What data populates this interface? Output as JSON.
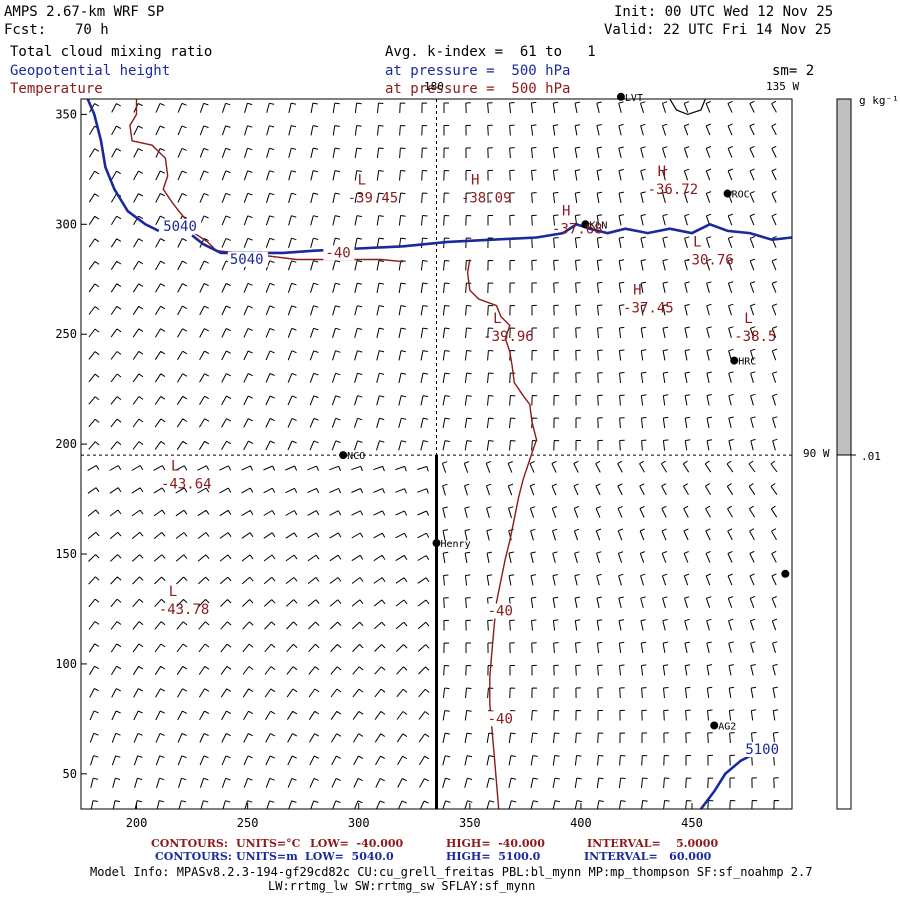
{
  "header": {
    "model": "AMPS 2.67-km WRF SP",
    "fcst_label": "Fcst:",
    "fcst_value": "70 h",
    "init": "Init: 00 UTC Wed 12 Nov 25",
    "valid": "Valid: 22 UTC Fri 14 Nov 25",
    "field1": "Total cloud mixing ratio",
    "field2": "Geopotential height",
    "field3": "Temperature",
    "avg": "Avg. k-index =  61 to   1",
    "pressure1": "at pressure =  500 hPa",
    "pressure2": "at pressure =  500 hPa",
    "sm": "sm= 2"
  },
  "colorbar": {
    "unit": "g kg⁻¹",
    "tick": ".01",
    "color_high": "#c0c0c0",
    "color_low": "#ffffff"
  },
  "map": {
    "longitude_labels": {
      "top_center": "180",
      "top_right": "135 W",
      "right_mid": "90 W"
    },
    "stations": [
      {
        "name": "LVT",
        "x": 418,
        "y": 358
      },
      {
        "name": "ROC",
        "x": 466,
        "y": 314
      },
      {
        "name": "KLN",
        "x": 402,
        "y": 300
      },
      {
        "name": "HRC",
        "x": 469,
        "y": 238
      },
      {
        "name": "NCO",
        "x": 293,
        "y": 195
      },
      {
        "name": "Henry",
        "x": 335,
        "y": 155
      },
      {
        "name": "",
        "x": 492,
        "y": 141
      },
      {
        "name": "AG2",
        "x": 460,
        "y": 72
      }
    ],
    "temperature_extrema": [
      {
        "kind": "L",
        "value": "-39.45",
        "x": 295,
        "y": 318
      },
      {
        "kind": "H",
        "value": "-38.09",
        "x": 346,
        "y": 318
      },
      {
        "kind": "H",
        "value": "-36.72",
        "x": 430,
        "y": 322
      },
      {
        "kind": "H",
        "value": "-37.68",
        "x": 387,
        "y": 304
      },
      {
        "kind": "L",
        "value": "-30.76",
        "x": 446,
        "y": 290
      },
      {
        "kind": "H",
        "value": "-37.45",
        "x": 419,
        "y": 268
      },
      {
        "kind": "L",
        "value": "-39.96",
        "x": 356,
        "y": 255
      },
      {
        "kind": "L",
        "value": "-38.5",
        "x": 469,
        "y": 255
      },
      {
        "kind": "L",
        "value": "-43.64",
        "x": 211,
        "y": 188
      },
      {
        "kind": "L",
        "value": "-43.78",
        "x": 210,
        "y": 131
      }
    ],
    "contour_labels": [
      {
        "text": "-40",
        "color": "red",
        "x": 285,
        "y": 285
      },
      {
        "text": "-40",
        "color": "red",
        "x": 358,
        "y": 122
      },
      {
        "text": "-40",
        "color": "red",
        "x": 358,
        "y": 73
      },
      {
        "text": "5040",
        "color": "blue",
        "x": 212,
        "y": 297
      },
      {
        "text": "5040",
        "color": "blue",
        "x": 242,
        "y": 282
      },
      {
        "text": "5100",
        "color": "blue",
        "x": 474,
        "y": 59
      }
    ]
  },
  "chart_data": {
    "type": "map",
    "xlim": [
      175,
      495
    ],
    "ylim": [
      34,
      357
    ],
    "xticks": [
      "200",
      "250",
      "300",
      "350",
      "400",
      "450"
    ],
    "yticks": [
      "50",
      "100",
      "150",
      "200",
      "250",
      "300",
      "350"
    ],
    "cross_section_x": 335,
    "cross_section_y_start": 34,
    "cross_section_y_end": 195,
    "dashed_vertical_x": 335,
    "dashed_horizontal_y": 195,
    "temperature_contours": [
      {
        "value": -40,
        "points": [
          [
            350,
            284
          ],
          [
            349,
            278
          ],
          [
            350,
            270
          ],
          [
            354,
            266
          ],
          [
            362,
            263
          ],
          [
            364,
            258
          ],
          [
            368,
            254
          ],
          [
            366,
            248
          ],
          [
            368,
            242
          ],
          [
            369,
            236
          ],
          [
            370,
            228
          ],
          [
            374,
            222
          ],
          [
            377,
            218
          ],
          [
            378,
            210
          ],
          [
            380,
            202
          ],
          [
            378,
            196
          ],
          [
            376,
            190
          ],
          [
            374,
            184
          ],
          [
            372,
            176
          ],
          [
            370,
            166
          ],
          [
            368,
            156
          ],
          [
            366,
            148
          ],
          [
            364,
            138
          ],
          [
            362,
            128
          ],
          [
            361,
            118
          ],
          [
            360,
            106
          ],
          [
            359,
            94
          ],
          [
            359,
            82
          ],
          [
            360,
            70
          ],
          [
            361,
            58
          ],
          [
            362,
            46
          ],
          [
            363,
            34
          ]
        ]
      },
      {
        "value": -40,
        "points": [
          [
            200,
            357
          ],
          [
            200,
            350
          ],
          [
            197,
            345
          ],
          [
            198,
            338
          ],
          [
            207,
            336
          ],
          [
            213,
            330
          ],
          [
            214,
            322
          ],
          [
            212,
            316
          ],
          [
            216,
            310
          ],
          [
            219,
            306
          ],
          [
            224,
            300
          ],
          [
            226,
            296
          ],
          [
            232,
            292
          ],
          [
            236,
            288
          ],
          [
            246,
            287
          ],
          [
            256,
            286
          ],
          [
            272,
            284
          ],
          [
            290,
            284
          ],
          [
            300,
            284
          ],
          [
            310,
            284
          ],
          [
            320,
            283
          ]
        ]
      }
    ],
    "height_contours": [
      {
        "value": 5040,
        "points": [
          [
            178,
            357
          ],
          [
            181,
            350
          ],
          [
            184,
            338
          ],
          [
            186,
            326
          ],
          [
            190,
            316
          ],
          [
            196,
            306
          ],
          [
            204,
            300
          ],
          [
            210,
            297
          ]
        ]
      },
      {
        "value": 5040,
        "points": [
          [
            225,
            295
          ],
          [
            230,
            291
          ],
          [
            238,
            287
          ],
          [
            250,
            287
          ],
          [
            266,
            287
          ],
          [
            280,
            288
          ],
          [
            300,
            289
          ],
          [
            320,
            290
          ],
          [
            340,
            292
          ],
          [
            360,
            293
          ],
          [
            380,
            294
          ],
          [
            392,
            296
          ],
          [
            398,
            300
          ],
          [
            404,
            298
          ],
          [
            412,
            296
          ],
          [
            420,
            298
          ],
          [
            430,
            296
          ],
          [
            440,
            298
          ],
          [
            450,
            296
          ],
          [
            458,
            300
          ],
          [
            466,
            297
          ],
          [
            476,
            296
          ],
          [
            486,
            293
          ],
          [
            495,
            294
          ]
        ]
      },
      {
        "value": 5100,
        "points": [
          [
            454,
            34
          ],
          [
            460,
            42
          ],
          [
            465,
            50
          ],
          [
            472,
            56
          ],
          [
            476,
            58
          ]
        ]
      }
    ]
  },
  "footer": {
    "contours_temp": {
      "label": "CONTOURS:",
      "units": "UNITS=°C",
      "low": "LOW=  -40.000",
      "high": "HIGH=  -40.000",
      "interval": "INTERVAL=    5.0000"
    },
    "contours_height": {
      "label": "CONTOURS:",
      "units": "UNITS=m",
      "low": "LOW=  5040.0",
      "high": "HIGH=  5100.0",
      "interval": "INTERVAL=   60.000"
    },
    "model_info_1": "Model Info: MPASv8.2.3-194-gf29cd82c CU:cu_grell_freitas PBL:bl_mynn MP:mp_thompson SF:sf_noahmp 2.7",
    "model_info_2": "LW:rrtmg_lw SW:rrtmg_sw SFLAY:sf_mynn"
  }
}
